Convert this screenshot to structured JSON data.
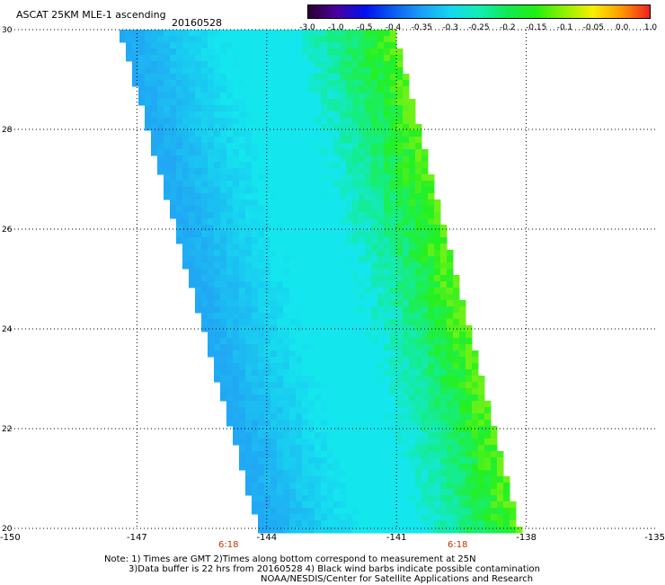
{
  "header": {
    "title": "ASCAT 25KM MLE-1 ascending",
    "date": "20160528"
  },
  "colorbar": {
    "ticks": [
      "-3.0",
      "-1.0",
      "-0.5",
      "-0.4",
      "-0.35",
      "-0.3",
      "-0.25",
      "-0.2",
      "-0.15",
      "-0.1",
      "-0.05",
      "0.0",
      "1.0"
    ],
    "colors": [
      "#2a0030",
      "#4a00a0",
      "#0010f0",
      "#0a5ef0",
      "#1aa0f8",
      "#14d8ee",
      "#10eeb4",
      "#10ea54",
      "#20f010",
      "#90f000",
      "#f8f000",
      "#ff9a00",
      "#f02020"
    ]
  },
  "map": {
    "lat_labels": [
      "30",
      "28",
      "26",
      "24",
      "22",
      "20"
    ],
    "lon_labels": [
      "-150",
      "-147",
      "-144",
      "-141",
      "-138",
      "-135"
    ],
    "lon_values": [
      -150,
      -147,
      -144,
      -141,
      -138,
      -135
    ],
    "lat_values": [
      30,
      28,
      26,
      24,
      22,
      20
    ],
    "time_labels": [
      {
        "text": "6:18",
        "lon": -145
      },
      {
        "text": "6:18",
        "lon": -139.6
      }
    ]
  },
  "swath": {
    "lat_range": [
      20,
      30
    ],
    "west_edge_lon": [
      -144.1,
      -147.3
    ],
    "east_edge_lon": [
      -138.2,
      -141.1
    ]
  },
  "footer": {
    "line1": "Note: 1) Times are GMT 2)Times along bottom correspond to measurement at 25N",
    "line2": "3)Data buffer is 22 hrs from 20160528 4) Black wind barbs indicate possible contamination",
    "line3": "NOAA/NESDIS/Center for Satellite Applications and Research"
  }
}
